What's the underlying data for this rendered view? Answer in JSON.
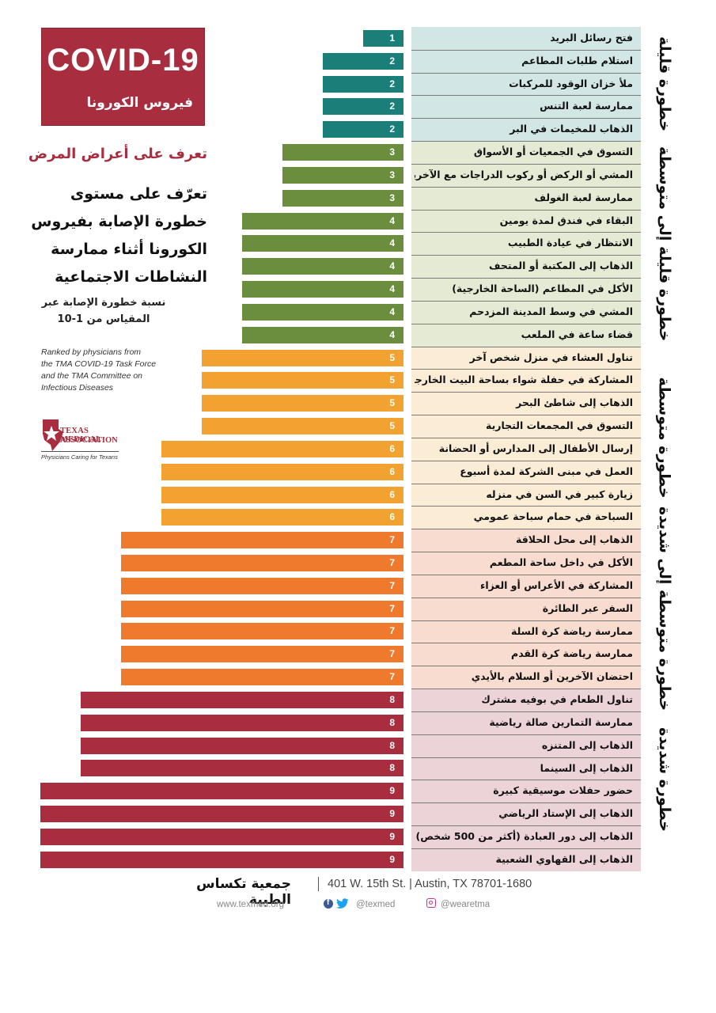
{
  "header": {
    "title": "COVID-19",
    "subtitle": "فيروس الكورونا"
  },
  "left_panel": {
    "symptoms_link": "تعرف على أعراض المرض",
    "headline_lines": [
      "تعرّف على مستوى",
      "خطورة الإصابة بفيروس",
      "الكورونا أثناء ممارسة",
      "النشاطات الاجتماعية"
    ],
    "scale_note_lines": [
      "نسبة خطورة الإصابة عبر",
      "المقياس من 1-10"
    ],
    "ranked_note_lines": [
      "Ranked by physicians from",
      "the TMA COVID-19 Task Force",
      "and the TMA Committee on",
      "Infectious Diseases"
    ],
    "logo": {
      "line1": "TEXAS MEDICAL",
      "line2": "ASSOCIATION",
      "tagline": "Physicians Caring for Texans",
      "icon": "texas-star-icon"
    }
  },
  "chart_data": {
    "type": "bar",
    "orientation": "horizontal",
    "xlim": [
      0,
      10
    ],
    "categories": [
      "فتح رسائل البريد",
      "استلام طلبات المطاعم",
      "ملأ خزان الوقود للمركبات",
      "ممارسة لعبة التنس",
      "الذهاب للمخيمات في البر",
      "التسوق في الجمعيات أو الأسواق",
      "المشي أو الركض أو ركوب الدراجات مع الآخرين",
      "ممارسة لعبة الغولف",
      "البقاء في فندق لمدة يومين",
      "الانتظار في عيادة الطبيب",
      "الذهاب إلى المكتبة أو المتحف",
      "الأكل في المطاعم (الساحة الخارجية)",
      "المشي في وسط المدينة المزدحم",
      "قضاء ساعة في الملعب",
      "تناول العشاء في منزل شخص آخر",
      "المشاركة في حفلة شواء بساحة البيت الخارجية",
      "الذهاب إلى شاطئ البحر",
      "التسوق في المجمعات التجارية",
      "إرسال الأطفال إلى المدارس أو الحضانة",
      "العمل في مبنى الشركة لمدة أسبوع",
      "زيارة كبير في السن في منزله",
      "السباحة في حمام سباحة عمومي",
      "الذهاب إلى محل الحلاقة",
      "الأكل في داخل ساحة المطعم",
      "المشاركة في الأعراس أو العزاء",
      "السفر عبر الطائرة",
      "ممارسة رياضة كرة السلة",
      "ممارسة رياضة كرة القدم",
      "احتضان الآخرين أو السلام بالأيدي",
      "تناول الطعام في بوفيه مشترك",
      "ممارسة التمارين صالة رياضية",
      "الذهاب إلى المتنزه",
      "الذهاب إلى السينما",
      "حضور حفلات موسيقية كبيرة",
      "الذهاب إلى الإستاد الرياضي",
      "الذهاب إلى دور العبادة (أكثر من 500 شخص)",
      "الذهاب إلى القهاوي الشعبية"
    ],
    "values": [
      1,
      2,
      2,
      2,
      2,
      3,
      3,
      3,
      4,
      4,
      4,
      4,
      4,
      4,
      5,
      5,
      5,
      5,
      6,
      6,
      6,
      6,
      7,
      7,
      7,
      7,
      7,
      7,
      7,
      8,
      8,
      8,
      8,
      9,
      9,
      9,
      9
    ],
    "value_colors": {
      "1": "#1a7f78",
      "2": "#1a7f78",
      "3": "#6b8e3e",
      "4": "#6b8e3e",
      "5": "#f2a230",
      "6": "#f2a230",
      "7": "#ef7a2e",
      "8": "#a82e3f",
      "9": "#a82e3f"
    },
    "risk_groups": [
      {
        "name": "خطورة قليلة",
        "rows": [
          0,
          4
        ],
        "band_color": "#d2e6e6"
      },
      {
        "name": "خطورة قليلة إلى متوسطة",
        "rows": [
          5,
          13
        ],
        "band_color": "#e4ead4"
      },
      {
        "name": "خطورة متوسطة",
        "rows": [
          14,
          21
        ],
        "band_color": "#fbecd6"
      },
      {
        "name": "خطورة متوسطة إلى شديدة",
        "rows": [
          22,
          28
        ],
        "band_color": "#f9dcd0"
      },
      {
        "name": "خطورة شديدة",
        "rows": [
          29,
          36
        ],
        "band_color": "#ecd3d7"
      }
    ]
  },
  "footer": {
    "org_name": "جمعية تكساس الطبية",
    "address": "401 W. 15th St.  |  Austin, TX 78701-1680",
    "website": "www.texmed.org",
    "twitter": "@texmed",
    "instagram": "@wearetma",
    "icons": [
      "facebook-icon",
      "twitter-icon",
      "instagram-icon"
    ]
  }
}
